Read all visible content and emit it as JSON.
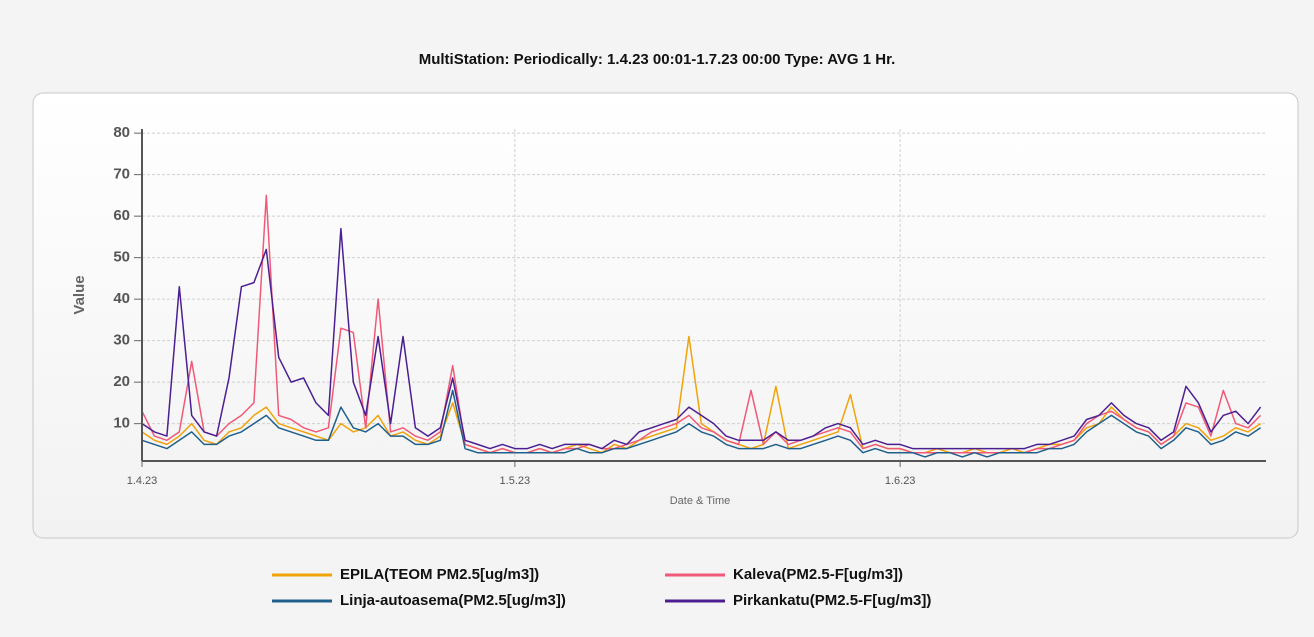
{
  "chart_data": {
    "type": "line",
    "title": "MultiStation:  Periodically: 1.4.23 00:01-1.7.23 00:00  Type: AVG 1 Hr.",
    "x_label": "Date & Time",
    "y_label": "Value",
    "x": [
      "1.4.23",
      "2.4.23",
      "3.4.23",
      "4.4.23",
      "5.4.23",
      "6.4.23",
      "7.4.23",
      "8.4.23",
      "9.4.23",
      "10.4.23",
      "11.4.23",
      "12.4.23",
      "13.4.23",
      "14.4.23",
      "15.4.23",
      "16.4.23",
      "17.4.23",
      "18.4.23",
      "19.4.23",
      "20.4.23",
      "21.4.23",
      "22.4.23",
      "23.4.23",
      "24.4.23",
      "25.4.23",
      "26.4.23",
      "27.4.23",
      "28.4.23",
      "29.4.23",
      "30.4.23",
      "1.5.23",
      "2.5.23",
      "3.5.23",
      "4.5.23",
      "5.5.23",
      "6.5.23",
      "7.5.23",
      "8.5.23",
      "9.5.23",
      "10.5.23",
      "11.5.23",
      "12.5.23",
      "13.5.23",
      "14.5.23",
      "15.5.23",
      "16.5.23",
      "17.5.23",
      "18.5.23",
      "19.5.23",
      "20.5.23",
      "21.5.23",
      "22.5.23",
      "23.5.23",
      "24.5.23",
      "25.5.23",
      "26.5.23",
      "27.5.23",
      "28.5.23",
      "29.5.23",
      "30.5.23",
      "31.5.23",
      "1.6.23",
      "2.6.23",
      "3.6.23",
      "4.6.23",
      "5.6.23",
      "6.6.23",
      "7.6.23",
      "8.6.23",
      "9.6.23",
      "10.6.23",
      "11.6.23",
      "12.6.23",
      "13.6.23",
      "14.6.23",
      "15.6.23",
      "16.6.23",
      "17.6.23",
      "18.6.23",
      "19.6.23",
      "20.6.23",
      "21.6.23",
      "22.6.23",
      "23.6.23",
      "24.6.23",
      "25.6.23",
      "26.6.23",
      "27.6.23",
      "28.6.23",
      "29.6.23",
      "30.6.23"
    ],
    "series": [
      {
        "name": "EPILA(TEOM PM2.5[ug/m3])",
        "color": "#f0a30a",
        "values": [
          8,
          6,
          5,
          7,
          10,
          6,
          5,
          8,
          9,
          12,
          14,
          10,
          9,
          8,
          7,
          6,
          10,
          8,
          9,
          12,
          7,
          8,
          6,
          5,
          7,
          15,
          5,
          4,
          3,
          4,
          3,
          3,
          4,
          3,
          4,
          5,
          4,
          3,
          5,
          4,
          6,
          7,
          8,
          9,
          31,
          10,
          8,
          6,
          5,
          4,
          5,
          19,
          4,
          5,
          6,
          7,
          8,
          17,
          4,
          5,
          4,
          4,
          3,
          3,
          4,
          3,
          3,
          4,
          3,
          3,
          4,
          3,
          4,
          5,
          5,
          6,
          9,
          10,
          14,
          11,
          9,
          8,
          5,
          7,
          10,
          9,
          6,
          7,
          9,
          8,
          10
        ]
      },
      {
        "name": "Kaleva(PM2.5-F[ug/m3])",
        "color": "#f05a78",
        "values": [
          13,
          7,
          6,
          8,
          25,
          8,
          7,
          10,
          12,
          15,
          65,
          12,
          11,
          9,
          8,
          9,
          33,
          32,
          9,
          40,
          8,
          9,
          7,
          6,
          8,
          24,
          5,
          4,
          3,
          4,
          3,
          3,
          4,
          3,
          4,
          4,
          5,
          4,
          4,
          5,
          6,
          8,
          9,
          10,
          12,
          9,
          8,
          6,
          5,
          18,
          5,
          8,
          5,
          6,
          7,
          8,
          9,
          8,
          4,
          5,
          4,
          4,
          3,
          3,
          3,
          3,
          3,
          3,
          3,
          3,
          3,
          3,
          4,
          4,
          5,
          6,
          10,
          12,
          13,
          11,
          9,
          8,
          5,
          7,
          15,
          14,
          7,
          18,
          10,
          9,
          12
        ]
      },
      {
        "name": "Linja-autoasema(PM2.5[ug/m3])",
        "color": "#1f5f8b",
        "values": [
          6,
          5,
          4,
          6,
          8,
          5,
          5,
          7,
          8,
          10,
          12,
          9,
          8,
          7,
          6,
          6,
          14,
          9,
          8,
          10,
          7,
          7,
          5,
          5,
          6,
          18,
          4,
          3,
          3,
          3,
          3,
          3,
          3,
          3,
          3,
          4,
          3,
          3,
          4,
          4,
          5,
          6,
          7,
          8,
          10,
          8,
          7,
          5,
          4,
          4,
          4,
          5,
          4,
          4,
          5,
          6,
          7,
          6,
          3,
          4,
          3,
          3,
          3,
          2,
          3,
          3,
          2,
          3,
          2,
          3,
          3,
          3,
          3,
          4,
          4,
          5,
          8,
          10,
          12,
          10,
          8,
          7,
          4,
          6,
          9,
          8,
          5,
          6,
          8,
          7,
          9
        ]
      },
      {
        "name": "Pirkankatu(PM2.5-F[ug/m3])",
        "color": "#4b1f91",
        "values": [
          10,
          8,
          7,
          43,
          12,
          8,
          7,
          21,
          43,
          44,
          52,
          26,
          20,
          21,
          15,
          12,
          57,
          20,
          12,
          31,
          10,
          31,
          9,
          7,
          9,
          21,
          6,
          5,
          4,
          5,
          4,
          4,
          5,
          4,
          5,
          5,
          5,
          4,
          6,
          5,
          8,
          9,
          10,
          11,
          14,
          12,
          10,
          7,
          6,
          6,
          6,
          8,
          6,
          6,
          7,
          9,
          10,
          9,
          5,
          6,
          5,
          5,
          4,
          4,
          4,
          4,
          4,
          4,
          4,
          4,
          4,
          4,
          5,
          5,
          6,
          7,
          11,
          12,
          15,
          12,
          10,
          9,
          6,
          8,
          19,
          15,
          8,
          12,
          13,
          10,
          14
        ]
      }
    ],
    "xlim": [
      "1.4.23",
      "1.7.23"
    ],
    "xticks": [
      "1.4.23",
      "1.5.23",
      "1.6.23"
    ],
    "ylim": [
      1,
      81
    ],
    "yticks": [
      10,
      20,
      30,
      40,
      50,
      60,
      70,
      80
    ],
    "grid": true
  }
}
